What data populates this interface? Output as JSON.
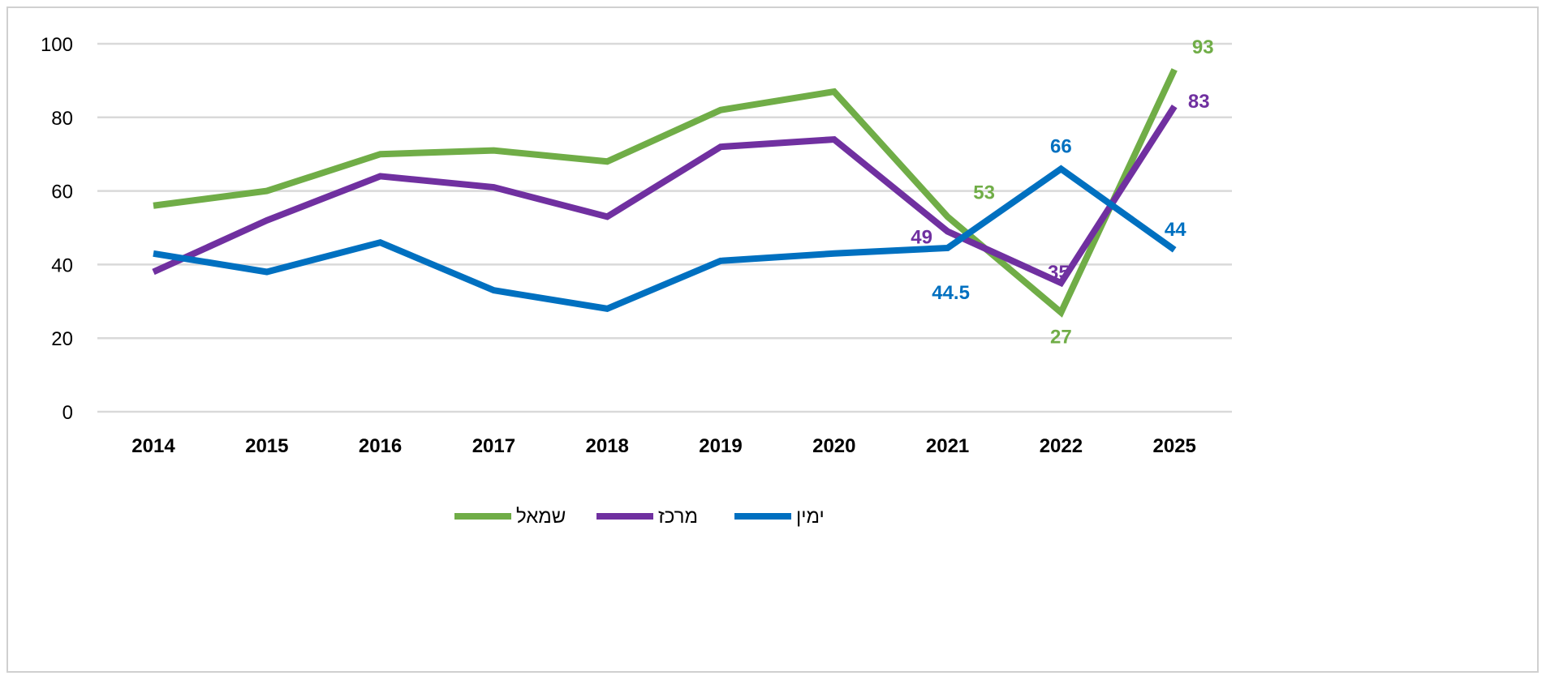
{
  "chart_data": {
    "type": "line",
    "title": "",
    "xlabel": "",
    "ylabel": "",
    "categories": [
      "2014",
      "2015",
      "2016",
      "2017",
      "2018",
      "2019",
      "2020",
      "2021",
      "2022",
      "2025"
    ],
    "ylim": [
      0,
      100
    ],
    "yticks": [
      "0",
      "20",
      "40",
      "60",
      "80",
      "100"
    ],
    "grid": true,
    "legend_position": "bottom",
    "series": [
      {
        "name": "שמאל",
        "color": "#70ad47",
        "values": [
          56,
          60,
          70,
          71,
          68,
          82,
          87,
          53,
          27,
          93
        ],
        "labels": [
          null,
          null,
          null,
          null,
          null,
          null,
          null,
          "53",
          "27",
          "93"
        ]
      },
      {
        "name": "מרכז",
        "color": "#7030a0",
        "values": [
          38,
          52,
          64,
          61,
          53,
          72,
          74,
          49,
          35,
          83
        ],
        "labels": [
          null,
          null,
          null,
          null,
          null,
          null,
          null,
          "49",
          "35",
          "83"
        ]
      },
      {
        "name": "ימין",
        "color": "#0070c0",
        "values": [
          43,
          38,
          46,
          33,
          28,
          41,
          43,
          44.5,
          66,
          44
        ],
        "labels": [
          null,
          null,
          null,
          null,
          null,
          null,
          null,
          "44.5",
          "66",
          "44"
        ]
      }
    ]
  }
}
